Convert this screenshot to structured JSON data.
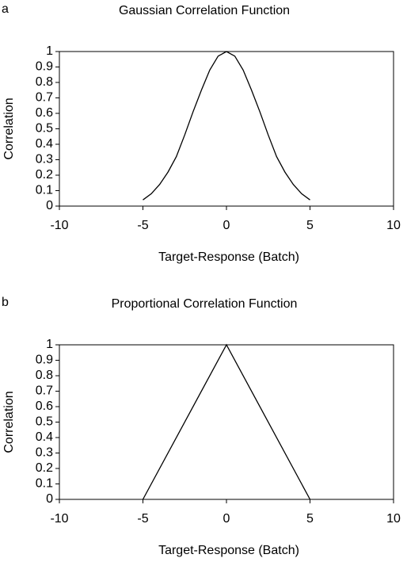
{
  "chart_data": [
    {
      "type": "line",
      "panel": "a",
      "title": "Gaussian Correlation Function",
      "x_label": "Target-Response (Batch)",
      "y_label": "Correlation",
      "x": [
        -5,
        -4.5,
        -4,
        -3.5,
        -3,
        -2.5,
        -2,
        -1.5,
        -1,
        -0.5,
        0,
        0.5,
        1,
        1.5,
        2,
        2.5,
        3,
        3.5,
        4,
        4.5,
        5
      ],
      "values": [
        0.04,
        0.08,
        0.14,
        0.22,
        0.32,
        0.46,
        0.61,
        0.75,
        0.88,
        0.97,
        1,
        0.97,
        0.88,
        0.75,
        0.61,
        0.46,
        0.32,
        0.22,
        0.14,
        0.08,
        0.04
      ],
      "color": "#000000",
      "xlim": [
        -10,
        10
      ],
      "xticks": [
        -10,
        -5,
        0,
        5,
        10
      ],
      "ylim": [
        0,
        1
      ],
      "yticks": [
        0,
        0.1,
        0.2,
        0.3,
        0.4,
        0.5,
        0.6,
        0.7,
        0.8,
        0.9,
        1
      ],
      "grid": false
    },
    {
      "type": "line",
      "panel": "b",
      "title": "Proportional Correlation Function",
      "x_label": "Target-Response (Batch)",
      "y_label": "Correlation",
      "x": [
        -5,
        0,
        5
      ],
      "values": [
        0,
        1,
        0
      ],
      "color": "#000000",
      "xlim": [
        -10,
        10
      ],
      "xticks": [
        -10,
        -5,
        0,
        5,
        10
      ],
      "ylim": [
        0,
        1
      ],
      "yticks": [
        0,
        0.1,
        0.2,
        0.3,
        0.4,
        0.5,
        0.6,
        0.7,
        0.8,
        0.9,
        1
      ],
      "grid": false
    }
  ]
}
